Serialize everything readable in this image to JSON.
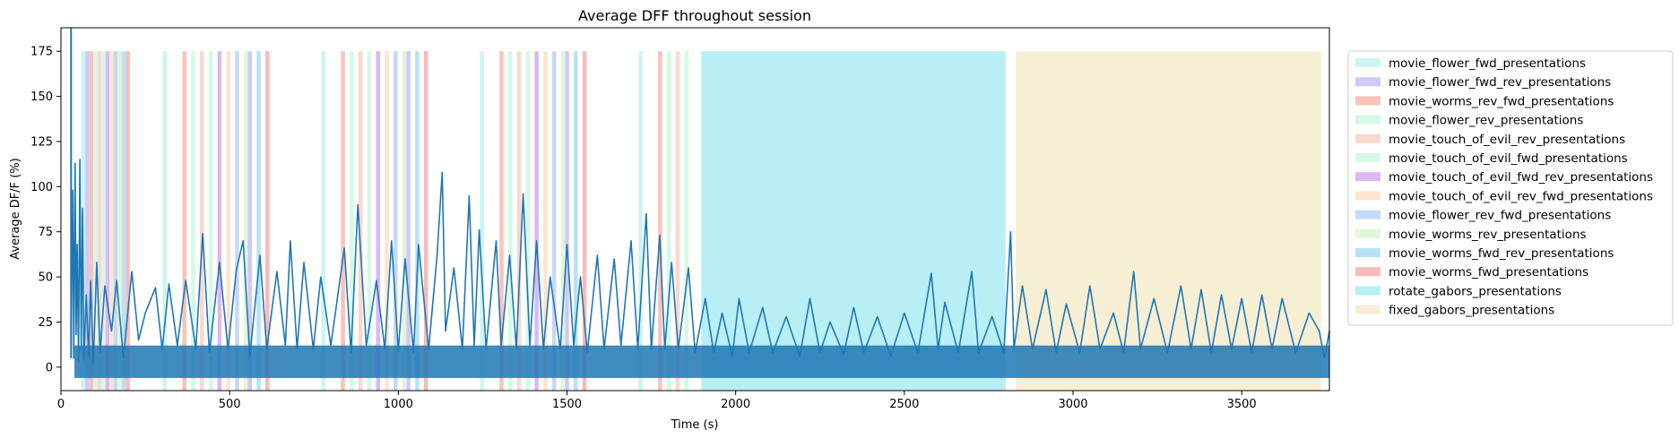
{
  "chart_data": {
    "type": "line",
    "title": "Average DFF throughout session",
    "xlabel": "Time (s)",
    "ylabel": "Average DF/F (%)",
    "xlim": [
      0,
      3760
    ],
    "ylim": [
      -13,
      188
    ],
    "xticks": [
      0,
      500,
      1000,
      1500,
      2000,
      2500,
      3000,
      3500
    ],
    "yticks": [
      0,
      25,
      50,
      75,
      100,
      125,
      150,
      175
    ],
    "grid": false,
    "legend_position": "outside-right",
    "line_color": "#1f77b4",
    "stimulus_band_ymax": 175,
    "series": [
      {
        "trace_points": [
          [
            30,
            10
          ],
          [
            35,
            98
          ],
          [
            38,
            5
          ],
          [
            42,
            113
          ],
          [
            45,
            18
          ],
          [
            48,
            68
          ],
          [
            52,
            3
          ],
          [
            56,
            115
          ],
          [
            60,
            10
          ],
          [
            64,
            88
          ],
          [
            68,
            4
          ],
          [
            75,
            40
          ],
          [
            82,
            6
          ],
          [
            88,
            48
          ],
          [
            96,
            2
          ],
          [
            106,
            58
          ],
          [
            116,
            8
          ],
          [
            130,
            45
          ],
          [
            150,
            20
          ],
          [
            165,
            48
          ],
          [
            185,
            5
          ],
          [
            210,
            53
          ],
          [
            230,
            15
          ],
          [
            250,
            30
          ],
          [
            280,
            44
          ],
          [
            300,
            10
          ],
          [
            320,
            46
          ],
          [
            345,
            12
          ],
          [
            370,
            48
          ],
          [
            400,
            10
          ],
          [
            420,
            74
          ],
          [
            440,
            8
          ],
          [
            470,
            58
          ],
          [
            495,
            10
          ],
          [
            520,
            54
          ],
          [
            540,
            70
          ],
          [
            560,
            6
          ],
          [
            590,
            62
          ],
          [
            610,
            10
          ],
          [
            640,
            53
          ],
          [
            665,
            12
          ],
          [
            680,
            70
          ],
          [
            700,
            10
          ],
          [
            720,
            58
          ],
          [
            748,
            10
          ],
          [
            770,
            50
          ],
          [
            800,
            12
          ],
          [
            840,
            66
          ],
          [
            860,
            8
          ],
          [
            880,
            90
          ],
          [
            905,
            12
          ],
          [
            935,
            48
          ],
          [
            960,
            10
          ],
          [
            980,
            70
          ],
          [
            1000,
            9
          ],
          [
            1020,
            60
          ],
          [
            1045,
            8
          ],
          [
            1060,
            68
          ],
          [
            1090,
            10
          ],
          [
            1115,
            62
          ],
          [
            1130,
            108
          ],
          [
            1140,
            20
          ],
          [
            1165,
            55
          ],
          [
            1190,
            10
          ],
          [
            1210,
            95
          ],
          [
            1225,
            12
          ],
          [
            1240,
            76
          ],
          [
            1260,
            10
          ],
          [
            1290,
            70
          ],
          [
            1305,
            12
          ],
          [
            1330,
            62
          ],
          [
            1350,
            10
          ],
          [
            1370,
            96
          ],
          [
            1390,
            12
          ],
          [
            1410,
            70
          ],
          [
            1430,
            10
          ],
          [
            1450,
            50
          ],
          [
            1480,
            10
          ],
          [
            1500,
            68
          ],
          [
            1520,
            12
          ],
          [
            1540,
            50
          ],
          [
            1560,
            8
          ],
          [
            1590,
            62
          ],
          [
            1610,
            10
          ],
          [
            1640,
            60
          ],
          [
            1660,
            12
          ],
          [
            1690,
            70
          ],
          [
            1710,
            10
          ],
          [
            1735,
            85
          ],
          [
            1750,
            10
          ],
          [
            1775,
            73
          ],
          [
            1790,
            10
          ],
          [
            1810,
            58
          ],
          [
            1830,
            10
          ],
          [
            1860,
            55
          ],
          [
            1880,
            8
          ],
          [
            1910,
            38
          ],
          [
            1935,
            8
          ],
          [
            1960,
            30
          ],
          [
            1990,
            6
          ],
          [
            2010,
            38
          ],
          [
            2040,
            8
          ],
          [
            2080,
            33
          ],
          [
            2110,
            8
          ],
          [
            2150,
            28
          ],
          [
            2190,
            6
          ],
          [
            2220,
            38
          ],
          [
            2250,
            8
          ],
          [
            2280,
            25
          ],
          [
            2320,
            7
          ],
          [
            2350,
            33
          ],
          [
            2380,
            8
          ],
          [
            2420,
            28
          ],
          [
            2460,
            6
          ],
          [
            2500,
            30
          ],
          [
            2540,
            8
          ],
          [
            2580,
            52
          ],
          [
            2600,
            10
          ],
          [
            2620,
            36
          ],
          [
            2660,
            8
          ],
          [
            2700,
            53
          ],
          [
            2720,
            8
          ],
          [
            2760,
            28
          ],
          [
            2795,
            8
          ],
          [
            2810,
            58
          ],
          [
            2815,
            75
          ],
          [
            2825,
            10
          ],
          [
            2850,
            45
          ],
          [
            2880,
            10
          ],
          [
            2920,
            43
          ],
          [
            2950,
            8
          ],
          [
            2980,
            35
          ],
          [
            3020,
            8
          ],
          [
            3050,
            45
          ],
          [
            3080,
            10
          ],
          [
            3120,
            30
          ],
          [
            3150,
            8
          ],
          [
            3180,
            53
          ],
          [
            3200,
            10
          ],
          [
            3240,
            38
          ],
          [
            3280,
            8
          ],
          [
            3320,
            45
          ],
          [
            3350,
            10
          ],
          [
            3380,
            43
          ],
          [
            3410,
            8
          ],
          [
            3440,
            40
          ],
          [
            3470,
            10
          ],
          [
            3500,
            38
          ],
          [
            3530,
            8
          ],
          [
            3560,
            40
          ],
          [
            3590,
            10
          ],
          [
            3620,
            38
          ],
          [
            3660,
            8
          ],
          [
            3700,
            30
          ],
          [
            3730,
            20
          ],
          [
            3745,
            5
          ],
          [
            3760,
            20
          ]
        ]
      }
    ],
    "stimulus_epochs": [
      {
        "name": "movie_flower_fwd_presentations",
        "color": "#ccf5f0",
        "intervals": [
          [
            60,
            72
          ],
          [
            302,
            314
          ],
          [
            772,
            784
          ],
          [
            1242,
            1254
          ],
          [
            1712,
            1724
          ]
        ]
      },
      {
        "name": "movie_flower_fwd_rev_presentations",
        "color": "#d0c8fa",
        "intervals": [
          [
            72,
            84
          ],
          [
            554,
            566
          ],
          [
            1024,
            1036
          ],
          [
            1494,
            1506
          ]
        ]
      },
      {
        "name": "movie_worms_rev_fwd_presentations",
        "color": "#f9c3ba",
        "intervals": [
          [
            84,
            96
          ],
          [
            360,
            372
          ],
          [
            830,
            842
          ],
          [
            1300,
            1312
          ],
          [
            1770,
            1782
          ]
        ]
      },
      {
        "name": "movie_flower_rev_presentations",
        "color": "#d4f9e7",
        "intervals": [
          [
            96,
            108
          ],
          [
            386,
            398
          ],
          [
            856,
            868
          ],
          [
            1326,
            1338
          ],
          [
            1796,
            1808
          ]
        ]
      },
      {
        "name": "movie_touch_of_evil_rev_presentations",
        "color": "#fcd7cd",
        "intervals": [
          [
            108,
            120
          ],
          [
            412,
            424
          ],
          [
            882,
            894
          ],
          [
            1352,
            1364
          ],
          [
            1822,
            1834
          ]
        ]
      },
      {
        "name": "movie_touch_of_evil_fwd_presentations",
        "color": "#d8f8e6",
        "intervals": [
          [
            120,
            132
          ],
          [
            438,
            450
          ],
          [
            908,
            920
          ],
          [
            1378,
            1390
          ],
          [
            1848,
            1860
          ]
        ]
      },
      {
        "name": "movie_touch_of_evil_fwd_rev_presentations",
        "color": "#dab8f8",
        "intervals": [
          [
            132,
            144
          ],
          [
            464,
            476
          ],
          [
            934,
            946
          ],
          [
            1404,
            1416
          ]
        ]
      },
      {
        "name": "movie_touch_of_evil_rev_fwd_presentations",
        "color": "#fce5cf",
        "intervals": [
          [
            144,
            156
          ],
          [
            490,
            502
          ],
          [
            960,
            972
          ],
          [
            1430,
            1442
          ]
        ]
      },
      {
        "name": "movie_flower_rev_fwd_presentations",
        "color": "#c5d9f8",
        "intervals": [
          [
            156,
            168
          ],
          [
            516,
            528
          ],
          [
            986,
            998
          ],
          [
            1456,
            1468
          ]
        ]
      },
      {
        "name": "movie_worms_rev_presentations",
        "color": "#e3f5d8",
        "intervals": [
          [
            168,
            180
          ],
          [
            542,
            554
          ],
          [
            1012,
            1024
          ],
          [
            1482,
            1494
          ]
        ]
      },
      {
        "name": "movie_worms_fwd_rev_presentations",
        "color": "#b7e2f6",
        "intervals": [
          [
            180,
            192
          ],
          [
            580,
            592
          ],
          [
            1050,
            1062
          ],
          [
            1520,
            1532
          ]
        ]
      },
      {
        "name": "movie_worms_fwd_presentations",
        "color": "#fbb9b9",
        "intervals": [
          [
            192,
            204
          ],
          [
            606,
            618
          ],
          [
            1076,
            1088
          ],
          [
            1546,
            1558
          ]
        ]
      },
      {
        "name": "rotate_gabors_presentations",
        "color": "#b8eff4",
        "intervals": [
          [
            1898,
            2800
          ]
        ]
      },
      {
        "name": "fixed_gabors_presentations",
        "color": "#f6efd4",
        "intervals": [
          [
            2830,
            3735
          ]
        ]
      }
    ]
  }
}
